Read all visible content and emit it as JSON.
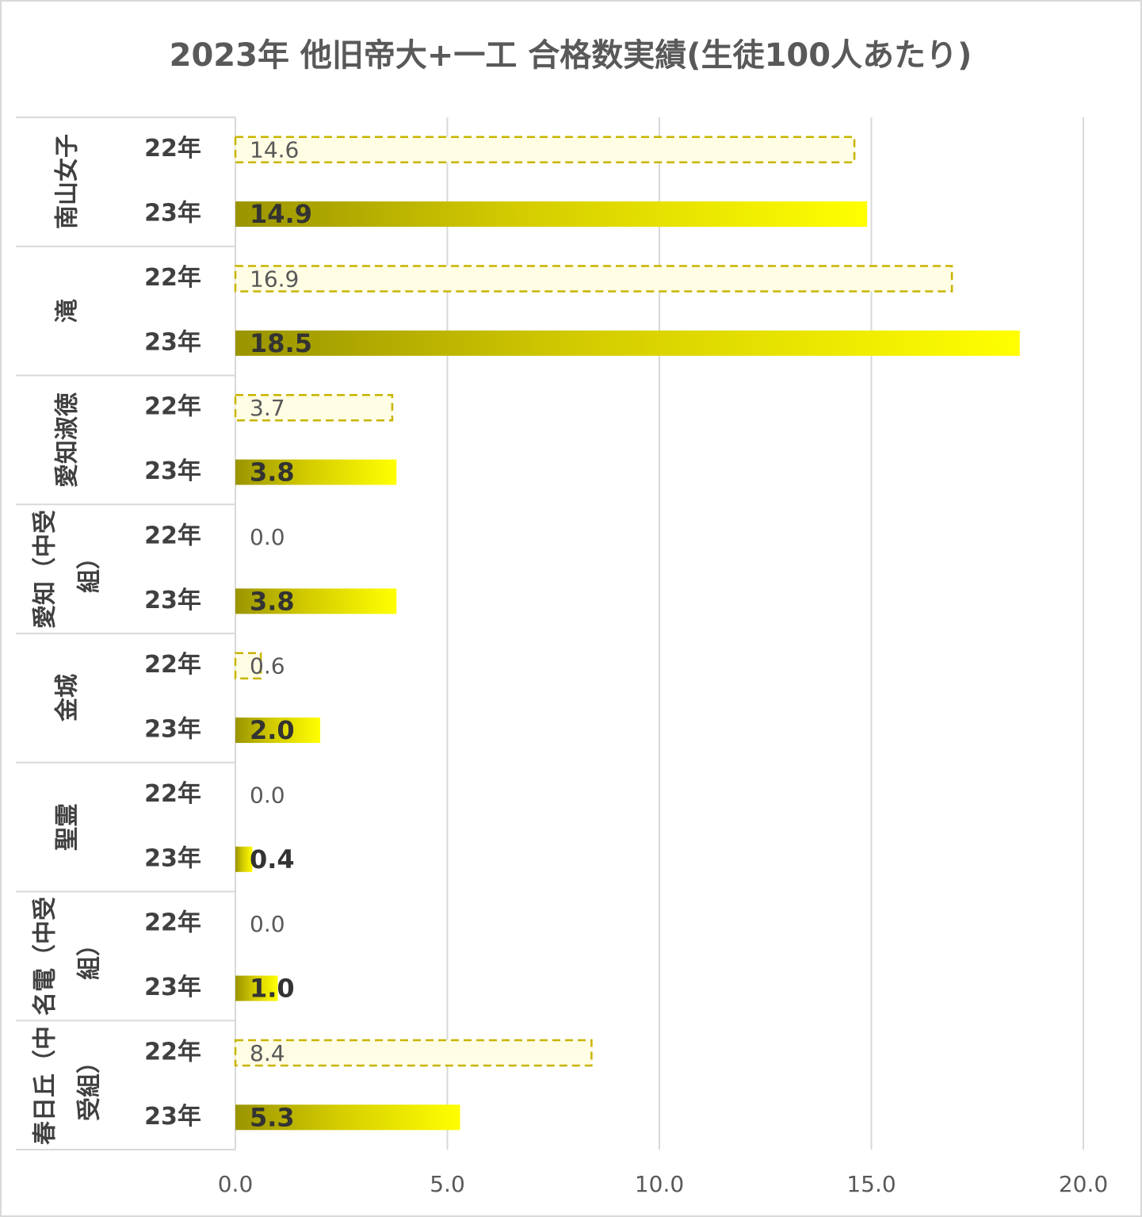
{
  "chart_data": {
    "type": "bar",
    "orientation": "horizontal",
    "title": "2023年 他旧帝大+一工 合格数実績(生徒100人あたり)",
    "categories": [
      "南山女子",
      "滝",
      "愛知淑徳",
      "愛知（中受組）",
      "金城",
      "聖霊",
      "名電（中受組）",
      "春日丘（中受組）"
    ],
    "series": [
      {
        "name": "22年",
        "color": "#c8b400",
        "values": [
          14.6,
          16.9,
          3.7,
          0,
          0.6,
          0,
          0,
          8.4
        ],
        "value_labels": [
          "14.6",
          "16.9",
          "3.7",
          "0.0",
          "0.6",
          "0.0",
          "0.0",
          "8.4"
        ]
      },
      {
        "name": "23年",
        "color": "#ffff00",
        "values": [
          14.9,
          18.5,
          3.8,
          3.8,
          2.0,
          0.4,
          1.0,
          5.3
        ],
        "value_labels": [
          "14.9",
          "18.5",
          "3.8",
          "3.8",
          "2.0",
          "0.4",
          "1.0",
          "5.3"
        ]
      }
    ],
    "xlim": [
      0,
      20
    ],
    "xticks": [
      {
        "value": 0,
        "label": "0.0"
      },
      {
        "value": 5,
        "label": "5.0"
      },
      {
        "value": 10,
        "label": "10.0"
      },
      {
        "value": 15,
        "label": "15.0"
      },
      {
        "value": 20,
        "label": "20.0"
      }
    ],
    "grid": true
  }
}
